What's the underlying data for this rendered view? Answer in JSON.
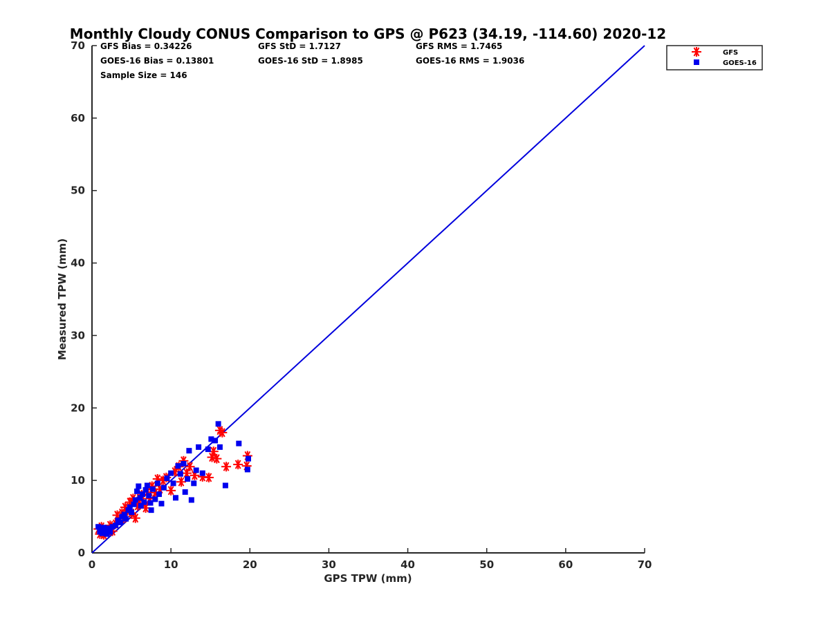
{
  "chart_data": {
    "type": "scatter",
    "title": "Monthly Cloudy CONUS Comparison to GPS @ P623 (34.19, -114.60) 2020-12",
    "xlabel": "GPS TPW (mm)",
    "ylabel": "Measured TPW (mm)",
    "xlim": [
      0,
      70
    ],
    "ylim": [
      0,
      70
    ],
    "xticks": [
      "0",
      "10",
      "20",
      "30",
      "40",
      "50",
      "60",
      "70"
    ],
    "yticks": [
      "0",
      "10",
      "20",
      "30",
      "40",
      "50",
      "60",
      "70"
    ],
    "grid": false,
    "legend_position": "top-right (outside plot)",
    "stats": [
      [
        "GFS Bias = 0.34226",
        "GFS StD = 1.7127",
        "GFS RMS = 1.7465"
      ],
      [
        "GOES-16 Bias = 0.13801",
        "GOES-16 StD = 1.8985",
        "GOES-16 RMS = 1.9036"
      ],
      [
        "Sample Size = 146",
        "",
        ""
      ]
    ],
    "reference_line": {
      "x": [
        0,
        70
      ],
      "y": [
        0,
        70
      ],
      "color": "#0000dd"
    },
    "series": [
      {
        "name": "GFS",
        "marker": "asterisk",
        "color": "#ff0000",
        "points": [
          [
            0.8,
            3.3
          ],
          [
            1.0,
            2.6
          ],
          [
            1.2,
            3.6
          ],
          [
            1.5,
            2.5
          ],
          [
            1.8,
            3.0
          ],
          [
            2.0,
            3.2
          ],
          [
            2.3,
            3.8
          ],
          [
            2.6,
            3.0
          ],
          [
            3.0,
            4.0
          ],
          [
            3.2,
            5.2
          ],
          [
            3.5,
            4.5
          ],
          [
            3.8,
            5.5
          ],
          [
            4.0,
            4.8
          ],
          [
            4.2,
            6.3
          ],
          [
            4.5,
            5.8
          ],
          [
            4.8,
            7.0
          ],
          [
            5.0,
            5.5
          ],
          [
            5.2,
            7.5
          ],
          [
            5.5,
            4.8
          ],
          [
            5.8,
            6.5
          ],
          [
            6.0,
            7.2
          ],
          [
            6.3,
            8.0
          ],
          [
            6.5,
            6.8
          ],
          [
            6.8,
            6.2
          ],
          [
            7.0,
            8.4
          ],
          [
            7.3,
            7.5
          ],
          [
            7.6,
            9.2
          ],
          [
            8.0,
            8.3
          ],
          [
            8.3,
            10.2
          ],
          [
            8.6,
            8.8
          ],
          [
            9.0,
            10.0
          ],
          [
            9.4,
            10.4
          ],
          [
            10.0,
            8.6
          ],
          [
            10.5,
            11.2
          ],
          [
            11.0,
            11.9
          ],
          [
            11.3,
            9.8
          ],
          [
            11.6,
            12.7
          ],
          [
            12.0,
            11.0
          ],
          [
            12.4,
            11.9
          ],
          [
            13.0,
            10.7
          ],
          [
            14.0,
            10.5
          ],
          [
            14.8,
            10.4
          ],
          [
            15.2,
            13.2
          ],
          [
            15.4,
            14.0
          ],
          [
            15.8,
            13.0
          ],
          [
            16.2,
            16.9
          ],
          [
            16.5,
            16.6
          ],
          [
            17.0,
            11.9
          ],
          [
            18.5,
            12.2
          ],
          [
            19.6,
            12.0
          ],
          [
            19.7,
            13.4
          ]
        ]
      },
      {
        "name": "GOES-16",
        "marker": "square",
        "color": "#0000ee",
        "points": [
          [
            0.8,
            3.6
          ],
          [
            1.0,
            2.9
          ],
          [
            1.1,
            3.3
          ],
          [
            1.3,
            2.7
          ],
          [
            1.5,
            3.5
          ],
          [
            1.7,
            3.0
          ],
          [
            1.9,
            2.6
          ],
          [
            2.1,
            3.4
          ],
          [
            2.3,
            2.9
          ],
          [
            2.6,
            3.6
          ],
          [
            3.0,
            3.8
          ],
          [
            3.3,
            4.5
          ],
          [
            3.6,
            4.2
          ],
          [
            3.8,
            5.0
          ],
          [
            4.1,
            5.3
          ],
          [
            4.3,
            4.7
          ],
          [
            4.6,
            5.9
          ],
          [
            4.8,
            6.3
          ],
          [
            5.0,
            5.6
          ],
          [
            5.3,
            6.7
          ],
          [
            5.5,
            7.3
          ],
          [
            5.7,
            8.5
          ],
          [
            5.9,
            9.2
          ],
          [
            6.1,
            7.6
          ],
          [
            6.2,
            6.5
          ],
          [
            6.4,
            8.1
          ],
          [
            6.6,
            7.0
          ],
          [
            6.8,
            8.7
          ],
          [
            7.0,
            9.3
          ],
          [
            7.2,
            7.9
          ],
          [
            7.4,
            6.9
          ],
          [
            7.5,
            5.9
          ],
          [
            7.7,
            8.8
          ],
          [
            8.0,
            7.4
          ],
          [
            8.3,
            9.6
          ],
          [
            8.5,
            8.1
          ],
          [
            8.8,
            6.8
          ],
          [
            9.1,
            9.0
          ],
          [
            9.5,
            10.3
          ],
          [
            10.0,
            11.0
          ],
          [
            10.3,
            9.6
          ],
          [
            10.6,
            7.6
          ],
          [
            10.9,
            12.0
          ],
          [
            11.2,
            10.9
          ],
          [
            11.6,
            12.3
          ],
          [
            11.8,
            8.4
          ],
          [
            12.1,
            10.2
          ],
          [
            12.3,
            14.1
          ],
          [
            12.6,
            7.3
          ],
          [
            12.9,
            9.6
          ],
          [
            13.2,
            11.4
          ],
          [
            13.5,
            14.6
          ],
          [
            14.0,
            11.0
          ],
          [
            14.7,
            14.3
          ],
          [
            15.1,
            15.7
          ],
          [
            15.6,
            15.5
          ],
          [
            16.0,
            17.8
          ],
          [
            16.2,
            14.6
          ],
          [
            16.9,
            9.3
          ],
          [
            18.6,
            15.1
          ],
          [
            19.7,
            11.5
          ],
          [
            19.8,
            13.0
          ]
        ]
      }
    ]
  }
}
